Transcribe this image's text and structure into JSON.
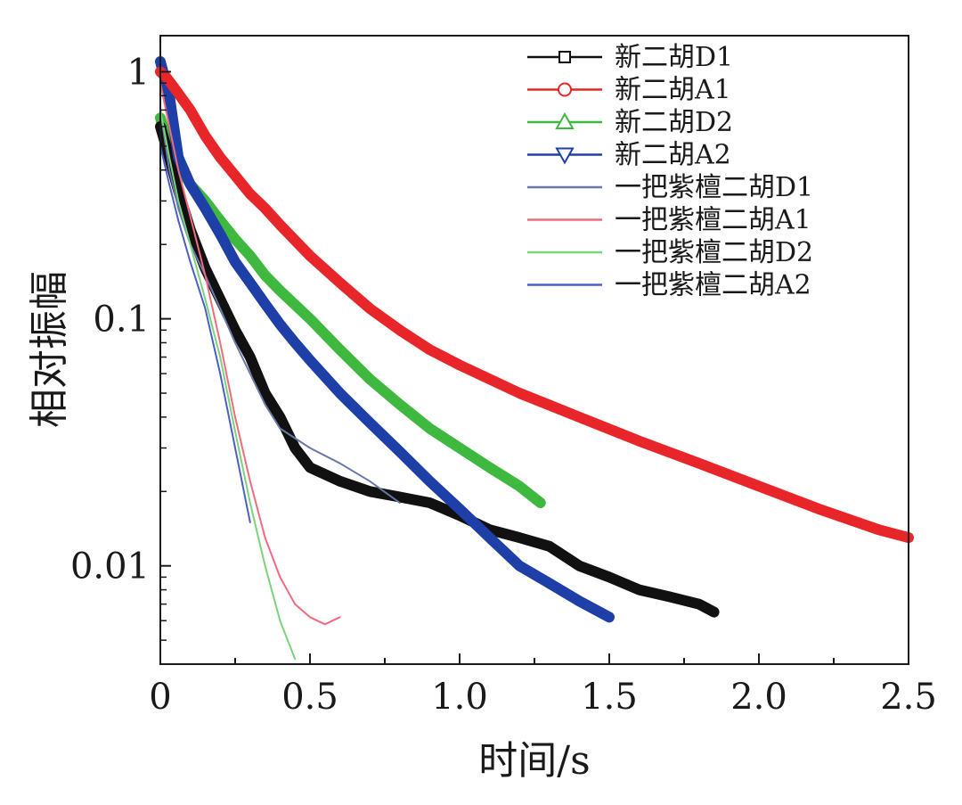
{
  "chart_data": {
    "type": "line",
    "xlabel": "时间/s",
    "ylabel": "相对振幅",
    "xlim": [
      0,
      2.5
    ],
    "ylim": [
      0.004,
      1.4
    ],
    "yscale": "log",
    "xticks": [
      {
        "value": 0,
        "label": "0"
      },
      {
        "value": 0.5,
        "label": "0.5"
      },
      {
        "value": 1.0,
        "label": "1.0"
      },
      {
        "value": 1.5,
        "label": "1.5"
      },
      {
        "value": 2.0,
        "label": "2.0"
      },
      {
        "value": 2.5,
        "label": "2.5"
      }
    ],
    "yticks": [
      {
        "value": 1,
        "label": "1"
      },
      {
        "value": 0.1,
        "label": "0.1"
      },
      {
        "value": 0.01,
        "label": "0.01"
      }
    ],
    "grid": false,
    "legend_position": "top-right",
    "series": [
      {
        "name": "新二胡D1",
        "color": "#111111",
        "marker": "square",
        "thick": true,
        "x": [
          0,
          0.03,
          0.06,
          0.1,
          0.15,
          0.2,
          0.25,
          0.3,
          0.35,
          0.4,
          0.45,
          0.5,
          0.6,
          0.7,
          0.8,
          0.9,
          1.0,
          1.1,
          1.2,
          1.3,
          1.4,
          1.5,
          1.6,
          1.7,
          1.8,
          1.85
        ],
        "y": [
          0.6,
          0.45,
          0.33,
          0.23,
          0.16,
          0.12,
          0.09,
          0.07,
          0.05,
          0.04,
          0.03,
          0.025,
          0.022,
          0.02,
          0.019,
          0.018,
          0.016,
          0.014,
          0.013,
          0.012,
          0.01,
          0.009,
          0.008,
          0.0075,
          0.007,
          0.0065
        ]
      },
      {
        "name": "新二胡A1",
        "color": "#e8262a",
        "marker": "circle",
        "thick": true,
        "x": [
          0,
          0.02,
          0.05,
          0.1,
          0.15,
          0.2,
          0.25,
          0.3,
          0.35,
          0.4,
          0.5,
          0.6,
          0.7,
          0.8,
          0.9,
          1.0,
          1.2,
          1.4,
          1.6,
          1.8,
          2.0,
          2.2,
          2.4,
          2.5
        ],
        "y": [
          1.0,
          0.95,
          0.85,
          0.7,
          0.55,
          0.45,
          0.38,
          0.32,
          0.28,
          0.24,
          0.18,
          0.14,
          0.11,
          0.09,
          0.075,
          0.065,
          0.05,
          0.04,
          0.032,
          0.026,
          0.021,
          0.017,
          0.014,
          0.013
        ]
      },
      {
        "name": "新二胡D2",
        "color": "#3fb83f",
        "marker": "triangle-up",
        "thick": true,
        "x": [
          0,
          0.03,
          0.06,
          0.1,
          0.15,
          0.2,
          0.25,
          0.3,
          0.35,
          0.4,
          0.5,
          0.6,
          0.7,
          0.8,
          0.9,
          1.0,
          1.1,
          1.2,
          1.27
        ],
        "y": [
          0.65,
          0.5,
          0.42,
          0.35,
          0.3,
          0.25,
          0.21,
          0.18,
          0.15,
          0.13,
          0.1,
          0.075,
          0.057,
          0.045,
          0.036,
          0.03,
          0.025,
          0.021,
          0.018
        ]
      },
      {
        "name": "新二胡A2",
        "color": "#1f3fa8",
        "marker": "triangle-down",
        "thick": true,
        "x": [
          0,
          0.03,
          0.06,
          0.1,
          0.15,
          0.2,
          0.25,
          0.3,
          0.35,
          0.4,
          0.45,
          0.5,
          0.6,
          0.7,
          0.8,
          0.9,
          1.0,
          1.1,
          1.2,
          1.3,
          1.4,
          1.5
        ],
        "y": [
          1.1,
          0.8,
          0.45,
          0.35,
          0.28,
          0.22,
          0.17,
          0.14,
          0.115,
          0.095,
          0.08,
          0.068,
          0.05,
          0.038,
          0.029,
          0.022,
          0.017,
          0.013,
          0.01,
          0.0085,
          0.0072,
          0.0062
        ]
      },
      {
        "name": "一把紫檀二胡D1",
        "color": "#6878a8",
        "marker": "none",
        "thick": false,
        "x": [
          0,
          0.03,
          0.06,
          0.1,
          0.15,
          0.2,
          0.25,
          0.3,
          0.35,
          0.4,
          0.5,
          0.6,
          0.7,
          0.8
        ],
        "y": [
          0.7,
          0.4,
          0.28,
          0.2,
          0.15,
          0.11,
          0.08,
          0.06,
          0.045,
          0.036,
          0.03,
          0.026,
          0.022,
          0.018
        ]
      },
      {
        "name": "一把紫檀二胡A1",
        "color": "#f06a80",
        "marker": "none",
        "thick": false,
        "x": [
          0,
          0.03,
          0.06,
          0.1,
          0.15,
          0.2,
          0.25,
          0.3,
          0.35,
          0.4,
          0.45,
          0.5,
          0.55,
          0.6
        ],
        "y": [
          0.9,
          0.6,
          0.4,
          0.26,
          0.15,
          0.08,
          0.04,
          0.022,
          0.013,
          0.009,
          0.007,
          0.0062,
          0.0058,
          0.0062
        ]
      },
      {
        "name": "一把紫檀二胡D2",
        "color": "#7cd37a",
        "marker": "none",
        "thick": false,
        "x": [
          0,
          0.03,
          0.06,
          0.1,
          0.15,
          0.2,
          0.25,
          0.3,
          0.35,
          0.4,
          0.45
        ],
        "y": [
          0.7,
          0.45,
          0.3,
          0.2,
          0.12,
          0.07,
          0.035,
          0.018,
          0.01,
          0.006,
          0.0042
        ]
      },
      {
        "name": "一把紫檀二胡A2",
        "color": "#4b5fc8",
        "marker": "none",
        "thick": false,
        "x": [
          0,
          0.03,
          0.06,
          0.1,
          0.15,
          0.2,
          0.25,
          0.3
        ],
        "y": [
          0.5,
          0.35,
          0.25,
          0.17,
          0.11,
          0.06,
          0.03,
          0.015
        ]
      }
    ]
  }
}
